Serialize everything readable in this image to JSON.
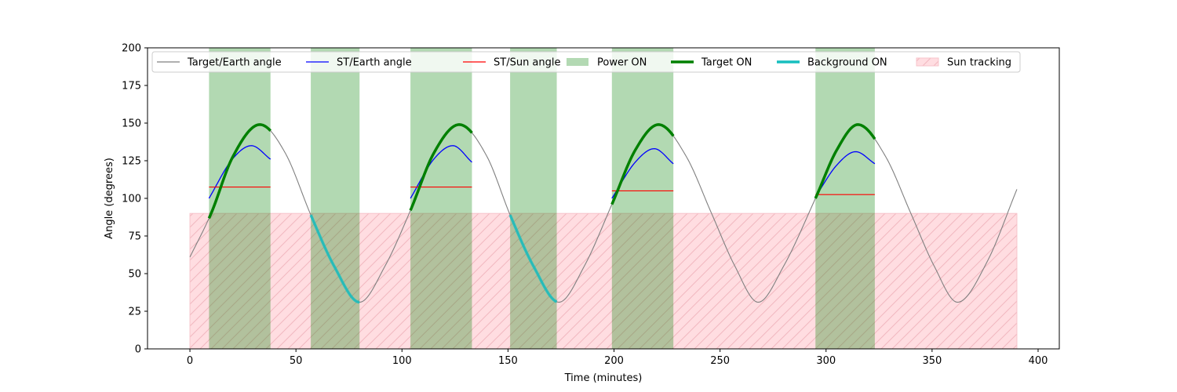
{
  "chart_data": {
    "type": "line",
    "xlabel": "Time (minutes)",
    "ylabel": "Angle (degrees)",
    "xlim": [
      -20,
      410
    ],
    "ylim": [
      0,
      200
    ],
    "x_ticks": [
      "0",
      "50",
      "100",
      "150",
      "200",
      "250",
      "300",
      "350",
      "400"
    ],
    "y_ticks": [
      "0",
      "25",
      "50",
      "75",
      "100",
      "125",
      "150",
      "175",
      "200"
    ],
    "grid": false,
    "legend_position": "top",
    "legend": [
      {
        "label": "Target/Earth angle",
        "kind": "line",
        "color": "#808080"
      },
      {
        "label": "ST/Earth angle",
        "kind": "line",
        "color": "#0000ff"
      },
      {
        "label": "ST/Sun angle",
        "kind": "line",
        "color": "#ff0000"
      },
      {
        "label": "Power ON",
        "kind": "patch",
        "color": "#b3d9b3"
      },
      {
        "label": "Target ON",
        "kind": "line",
        "color": "#008000"
      },
      {
        "label": "Background ON",
        "kind": "line",
        "color": "#17bfbf"
      },
      {
        "label": "Sun tracking",
        "kind": "hatch",
        "color": "#ffdde1"
      }
    ],
    "target_earth_angle": {
      "name": "Target/Earth angle",
      "color": "#808080",
      "start_minute": 0,
      "end_minute": 390,
      "points": [
        [
          0,
          61
        ],
        [
          10,
          90
        ],
        [
          20,
          127
        ],
        [
          33,
          149
        ],
        [
          45,
          130
        ],
        [
          57,
          89
        ],
        [
          68,
          55
        ],
        [
          80,
          31
        ],
        [
          92,
          55
        ],
        [
          104,
          92
        ],
        [
          115,
          130
        ],
        [
          127,
          149
        ],
        [
          140,
          128
        ],
        [
          151,
          89
        ],
        [
          162,
          55
        ],
        [
          174,
          31
        ],
        [
          186,
          55
        ],
        [
          199,
          96
        ],
        [
          210,
          132
        ],
        [
          221,
          149
        ],
        [
          234,
          128
        ],
        [
          246,
          90
        ],
        [
          257,
          55
        ],
        [
          268,
          31
        ],
        [
          280,
          55
        ],
        [
          295,
          100
        ],
        [
          305,
          132
        ],
        [
          315,
          149
        ],
        [
          328,
          128
        ],
        [
          340,
          90
        ],
        [
          351,
          55
        ],
        [
          362,
          31
        ],
        [
          376,
          58
        ],
        [
          390,
          106
        ]
      ]
    },
    "power_on_intervals": [
      [
        9,
        38
      ],
      [
        57,
        80
      ],
      [
        104,
        133
      ],
      [
        151,
        173
      ],
      [
        199,
        228
      ],
      [
        295,
        323
      ]
    ],
    "target_on_intervals": [
      [
        9,
        38
      ],
      [
        104,
        133
      ],
      [
        199,
        228
      ],
      [
        295,
        323
      ]
    ],
    "background_on_intervals": [
      [
        57,
        80
      ],
      [
        151,
        173
      ]
    ],
    "st_earth_segments": [
      {
        "start": 9,
        "end": 38,
        "points": [
          [
            9,
            100
          ],
          [
            20,
            126
          ],
          [
            29,
            135
          ],
          [
            38,
            126
          ]
        ]
      },
      {
        "start": 104,
        "end": 133,
        "points": [
          [
            104,
            100
          ],
          [
            115,
            126
          ],
          [
            124,
            135
          ],
          [
            133,
            124
          ]
        ]
      },
      {
        "start": 199,
        "end": 228,
        "points": [
          [
            199,
            100
          ],
          [
            210,
            124
          ],
          [
            219,
            133
          ],
          [
            228,
            123
          ]
        ]
      },
      {
        "start": 295,
        "end": 323,
        "points": [
          [
            295,
            101
          ],
          [
            305,
            122
          ],
          [
            314,
            131
          ],
          [
            323,
            123
          ]
        ]
      }
    ],
    "st_sun_segments": [
      {
        "start": 9,
        "end": 38,
        "value": 107.5
      },
      {
        "start": 104,
        "end": 133,
        "value": 107.5
      },
      {
        "start": 199,
        "end": 228,
        "value": 105
      },
      {
        "start": 295,
        "end": 323,
        "value": 102.5
      }
    ],
    "sun_tracking": {
      "x": [
        0,
        390
      ],
      "y": [
        0,
        90
      ]
    }
  }
}
